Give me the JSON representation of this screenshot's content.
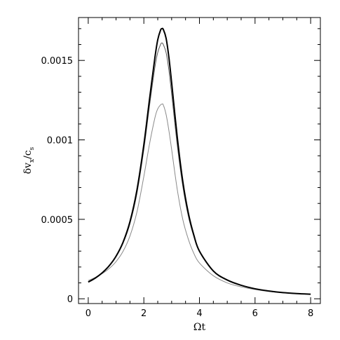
{
  "chart_data": {
    "type": "line",
    "title": "",
    "xlabel": "Ωt",
    "ylabel_parts": [
      "δv",
      "x",
      "/c",
      "s"
    ],
    "xlim": [
      -0.35,
      8.35
    ],
    "ylim": [
      -3e-05,
      0.00177
    ],
    "x_ticks": [
      0,
      2,
      4,
      6,
      8
    ],
    "x_tick_labels": [
      "0",
      "2",
      "4",
      "6",
      "8"
    ],
    "x_minor_step": 0.5,
    "y_ticks": [
      0,
      0.0005,
      0.001,
      0.0015
    ],
    "y_tick_labels": [
      "0",
      "0.0005",
      "0.001",
      "0.0015"
    ],
    "y_minor_step": 0.0001,
    "grid": false,
    "series": [
      {
        "color": "#000000",
        "width": 2.0,
        "x": [
          0,
          0.25,
          0.5,
          0.75,
          1.0,
          1.25,
          1.5,
          1.75,
          2.0,
          2.2,
          2.4,
          2.5,
          2.6,
          2.65,
          2.7,
          2.8,
          2.9,
          3.0,
          3.2,
          3.4,
          3.6,
          3.8,
          4.0,
          4.5,
          5.0,
          5.5,
          6.0,
          6.5,
          7.0,
          7.5,
          8.0
        ],
        "values": [
          0.000105,
          0.00013,
          0.000163,
          0.000207,
          0.000268,
          0.000355,
          0.000485,
          0.000683,
          0.00097,
          0.00125,
          0.00152,
          0.00163,
          0.00169,
          0.0017,
          0.001695,
          0.00164,
          0.00152,
          0.00136,
          0.00102,
          0.00074,
          0.00054,
          0.0004,
          0.0003,
          0.000175,
          0.000118,
          8.5e-05,
          6.3e-05,
          4.9e-05,
          3.9e-05,
          3.3e-05,
          2.9e-05
        ]
      },
      {
        "color": "#555555",
        "width": 1.0,
        "x": [
          0,
          0.25,
          0.5,
          0.75,
          1.0,
          1.25,
          1.5,
          1.75,
          2.0,
          2.2,
          2.4,
          2.5,
          2.6,
          2.65,
          2.7,
          2.8,
          2.9,
          3.0,
          3.2,
          3.4,
          3.6,
          3.8,
          4.0,
          4.5,
          5.0,
          5.5,
          6.0,
          6.5,
          7.0,
          7.5,
          8.0
        ],
        "values": [
          0.000108,
          0.000132,
          0.000164,
          0.000206,
          0.000264,
          0.000348,
          0.000472,
          0.000662,
          0.00094,
          0.00121,
          0.00146,
          0.00155,
          0.0016,
          0.00161,
          0.0016,
          0.00155,
          0.00144,
          0.00129,
          0.00097,
          0.00071,
          0.00052,
          0.00039,
          0.000295,
          0.000172,
          0.000117,
          8.5e-05,
          6.3e-05,
          4.9e-05,
          3.9e-05,
          3.3e-05,
          2.9e-05
        ]
      },
      {
        "color": "#8a8a8a",
        "width": 1.0,
        "x": [
          0,
          0.25,
          0.5,
          0.75,
          1.0,
          1.25,
          1.5,
          1.75,
          2.0,
          2.2,
          2.4,
          2.5,
          2.6,
          2.65,
          2.7,
          2.8,
          2.9,
          3.0,
          3.2,
          3.4,
          3.6,
          3.8,
          4.0,
          4.5,
          5.0,
          5.5,
          6.0,
          6.5,
          7.0,
          7.5,
          8.0
        ],
        "values": [
          0.000115,
          0.000134,
          0.000158,
          0.00019,
          0.000234,
          0.000298,
          0.000395,
          0.000545,
          0.00077,
          0.00097,
          0.00114,
          0.001195,
          0.00122,
          0.001225,
          0.00122,
          0.00116,
          0.00106,
          0.00094,
          0.00069,
          0.0005,
          0.000375,
          0.000285,
          0.000225,
          0.000145,
          0.0001,
          7.5e-05,
          5.8e-05,
          4.6e-05,
          3.8e-05,
          3.2e-05,
          2.8e-05
        ]
      }
    ]
  }
}
